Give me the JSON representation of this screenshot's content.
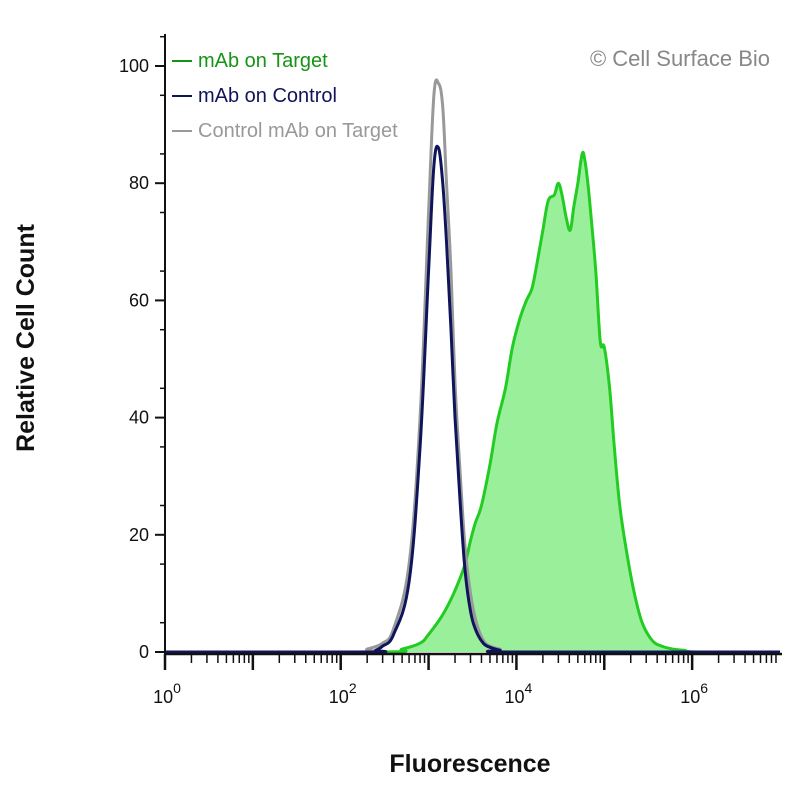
{
  "chart_data": {
    "type": "area",
    "xlabel": "Fluorescence",
    "ylabel": "Relative Cell Count",
    "x_scale": "log10",
    "xlim": [
      1,
      10000000
    ],
    "ylim": [
      0,
      100
    ],
    "y_ticks": [
      {
        "value": 0,
        "label": "0"
      },
      {
        "value": 20,
        "label": "20"
      },
      {
        "value": 40,
        "label": "40"
      },
      {
        "value": 60,
        "label": "60"
      },
      {
        "value": 80,
        "label": "80"
      },
      {
        "value": 100,
        "label": "100"
      }
    ],
    "x_ticks": [
      {
        "value": 1,
        "base": "10",
        "exp": "0"
      },
      {
        "value": 100,
        "base": "10",
        "exp": "2"
      },
      {
        "value": 10000,
        "base": "10",
        "exp": "4"
      },
      {
        "value": 1000000,
        "base": "10",
        "exp": "6"
      }
    ],
    "watermark": "© Cell Surface Bio",
    "legend_position": "top-left",
    "series": [
      {
        "name": "Control mAb on Target",
        "color": "#999999",
        "fill": false,
        "x": [
          1,
          150,
          200,
          300,
          400,
          600,
          800,
          1000,
          1150,
          1300,
          1450,
          1600,
          1800,
          2000,
          2300,
          2600,
          3000,
          3500,
          4200,
          5000,
          6500,
          9000,
          10000000
        ],
        "y": [
          0,
          0,
          0.5,
          1.5,
          4,
          15,
          40,
          75,
          95,
          97,
          93,
          80,
          65,
          46,
          30,
          18,
          10,
          5,
          2,
          1,
          0.5,
          0,
          0
        ]
      },
      {
        "name": "mAb on Control",
        "color": "#10145a",
        "fill": false,
        "x": [
          1,
          200,
          250,
          300,
          400,
          600,
          800,
          1000,
          1150,
          1300,
          1450,
          1600,
          1800,
          2000,
          2300,
          2600,
          3000,
          3500,
          4200,
          5000,
          6500,
          9000,
          10000000
        ],
        "y": [
          0,
          0,
          0.3,
          1,
          3,
          12,
          35,
          65,
          83,
          86,
          80,
          70,
          55,
          40,
          25,
          14,
          7,
          3.5,
          1.5,
          0.8,
          0.3,
          0,
          0
        ]
      },
      {
        "name": "mAb on Target",
        "color": "#22cc22",
        "fill": true,
        "fill_color": "#9aef9a",
        "x": [
          1,
          300,
          500,
          800,
          1000,
          1400,
          1800,
          2200,
          2600,
          3000,
          3400,
          4000,
          5000,
          6000,
          7500,
          9000,
          11000,
          13000,
          15000,
          17000,
          20000,
          23000,
          27000,
          30000,
          33000,
          37000,
          41000,
          45000,
          50000,
          56000,
          60000,
          65000,
          70000,
          80000,
          90000,
          100000,
          115000,
          130000,
          150000,
          180000,
          220000,
          270000,
          350000,
          450000,
          600000,
          800000,
          1200000,
          10000000
        ],
        "y": [
          0,
          0,
          0.5,
          1.5,
          3,
          6,
          9,
          12,
          15,
          19,
          22,
          25,
          32,
          39,
          45,
          52,
          57,
          60,
          62,
          66,
          72,
          77,
          78,
          80,
          78,
          74,
          72,
          76,
          80,
          85,
          84,
          80,
          75,
          65,
          53,
          52,
          45,
          35,
          25,
          17,
          10,
          5,
          2,
          1,
          0.5,
          0.3,
          0,
          0
        ]
      }
    ],
    "legend_order": [
      "mAb on Target",
      "mAb on Control",
      "Control mAb on Target"
    ]
  }
}
